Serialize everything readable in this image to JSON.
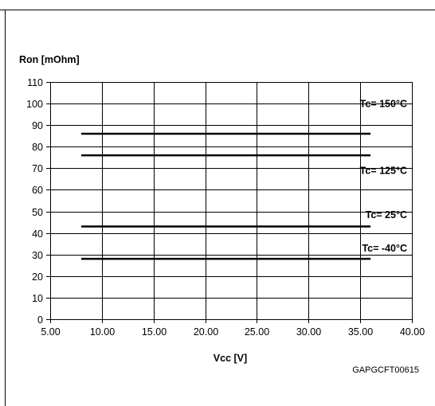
{
  "chart_data": {
    "type": "line",
    "title": "",
    "ylabel": "Ron [mOhm]",
    "xlabel": "Vcc [V]",
    "figure_id": "GAPGCFT00615",
    "xlim": [
      5,
      40
    ],
    "ylim": [
      0,
      110
    ],
    "x_ticks": [
      "5.00",
      "10.00",
      "15.00",
      "20.00",
      "25.00",
      "30.00",
      "35.00",
      "40.00"
    ],
    "x_tick_values": [
      5,
      10,
      15,
      20,
      25,
      30,
      35,
      40
    ],
    "y_ticks": [
      "0",
      "10",
      "20",
      "30",
      "40",
      "50",
      "60",
      "70",
      "80",
      "90",
      "100",
      "110"
    ],
    "y_tick_values": [
      0,
      10,
      20,
      30,
      40,
      50,
      60,
      70,
      80,
      90,
      100,
      110
    ],
    "grid": true,
    "series": [
      {
        "name": "Tc= 150°C",
        "x": [
          8,
          36
        ],
        "y": [
          86,
          86
        ],
        "label_y": 100
      },
      {
        "name": "Tc= 125°C",
        "x": [
          8,
          36
        ],
        "y": [
          76,
          76
        ],
        "label_y": 69
      },
      {
        "name": "Tc= 25°C",
        "x": [
          8,
          36
        ],
        "y": [
          43,
          43
        ],
        "label_y": 48.5
      },
      {
        "name": "Tc= -40°C",
        "x": [
          8,
          36
        ],
        "y": [
          28,
          28
        ],
        "label_y": 33
      }
    ]
  }
}
